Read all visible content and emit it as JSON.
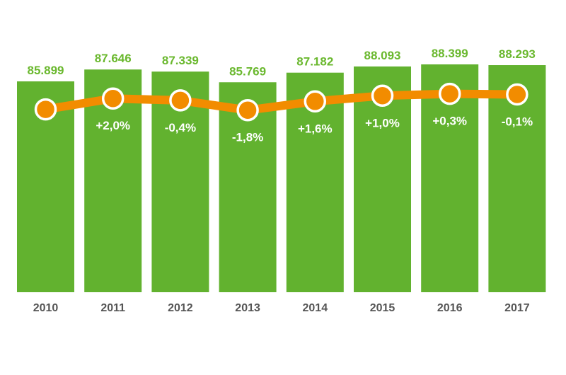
{
  "chart_data": {
    "type": "bar",
    "title": "",
    "xlabel": "",
    "ylabel": "",
    "categories": [
      "2010",
      "2011",
      "2012",
      "2013",
      "2014",
      "2015",
      "2016",
      "2017"
    ],
    "values": [
      85.899,
      87.646,
      87.339,
      85.769,
      87.182,
      88.093,
      88.399,
      88.293
    ],
    "value_labels": [
      "85.899",
      "87.646",
      "87.339",
      "85.769",
      "87.182",
      "88.093",
      "88.399",
      "88.293"
    ],
    "change_labels": [
      "",
      "+2,0%",
      "-0,4%",
      "-1,8%",
      "+1,6%",
      "+1,0%",
      "+0,3%",
      "-0,1%"
    ],
    "line_series": {
      "name": "change",
      "values": [
        85.899,
        87.646,
        87.339,
        85.769,
        87.182,
        88.093,
        88.399,
        88.293
      ]
    },
    "ylim": [
      54.86,
      88.4
    ],
    "grid": false,
    "colors": {
      "bar": "#62b22f",
      "line": "#f28c00",
      "value_label": "#6ab82e",
      "year_label": "#555555"
    }
  }
}
